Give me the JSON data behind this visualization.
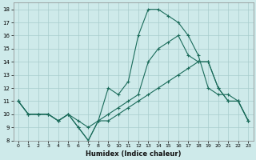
{
  "xlabel": "Humidex (Indice chaleur)",
  "background_color": "#ceeaea",
  "grid_color": "#a8cccc",
  "line_color": "#1a6b5a",
  "xlim": [
    -0.5,
    23.5
  ],
  "ylim": [
    8,
    18.5
  ],
  "xticks": [
    0,
    1,
    2,
    3,
    4,
    5,
    6,
    7,
    8,
    9,
    10,
    11,
    12,
    13,
    14,
    15,
    16,
    17,
    18,
    19,
    20,
    21,
    22,
    23
  ],
  "yticks": [
    8,
    9,
    10,
    11,
    12,
    13,
    14,
    15,
    16,
    17,
    18
  ],
  "line1_x": [
    0,
    1,
    2,
    3,
    4,
    5,
    6,
    7,
    8,
    9,
    10,
    11,
    12,
    13,
    14,
    15,
    16,
    17,
    18,
    19,
    20,
    21,
    22,
    23
  ],
  "line1_y": [
    11,
    10,
    10,
    10,
    9.5,
    10,
    9,
    8,
    9.5,
    12,
    11.5,
    12.5,
    16,
    18,
    18,
    17.5,
    17,
    16,
    14.5,
    12,
    11.5,
    11.5,
    11,
    9.5
  ],
  "line2_x": [
    0,
    1,
    2,
    3,
    4,
    5,
    6,
    7,
    8,
    9,
    10,
    11,
    12,
    13,
    14,
    15,
    16,
    17,
    18,
    19,
    20,
    21,
    22,
    23
  ],
  "line2_y": [
    11,
    10,
    10,
    10,
    9.5,
    10,
    9,
    8,
    9.5,
    9.5,
    10,
    10.5,
    11,
    11.5,
    12,
    12.5,
    13,
    13.5,
    14,
    14,
    12,
    11,
    11,
    9.5
  ],
  "line3_x": [
    0,
    1,
    2,
    3,
    4,
    5,
    6,
    7,
    8,
    9,
    10,
    11,
    12,
    13,
    14,
    15,
    16,
    17,
    18,
    19,
    20,
    21,
    22,
    23
  ],
  "line3_y": [
    11,
    10,
    10,
    10,
    9.5,
    10,
    9.5,
    9,
    9.5,
    10,
    10.5,
    11,
    11.5,
    14,
    15,
    15.5,
    16,
    14.5,
    14,
    14,
    12,
    11,
    11,
    9.5
  ]
}
